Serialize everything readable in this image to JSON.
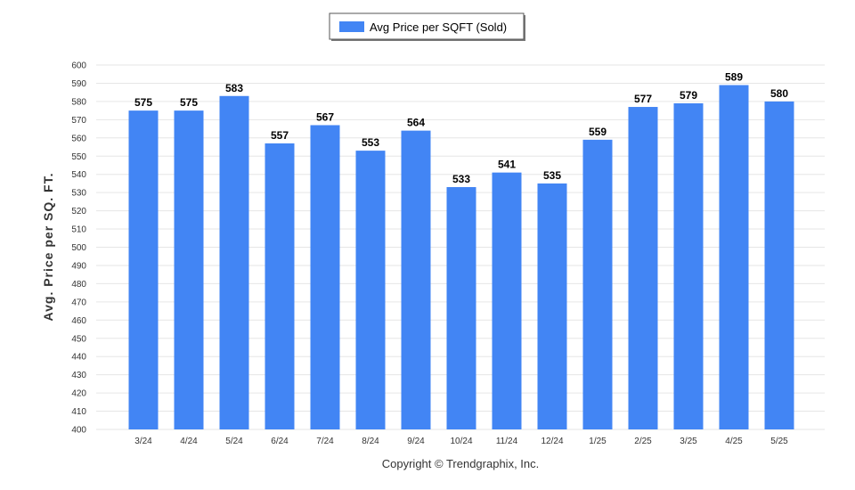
{
  "chart_data": {
    "type": "bar",
    "categories": [
      "3/24",
      "4/24",
      "5/24",
      "6/24",
      "7/24",
      "8/24",
      "9/24",
      "10/24",
      "11/24",
      "12/24",
      "1/25",
      "2/25",
      "3/25",
      "4/25",
      "5/25"
    ],
    "series": [
      {
        "name": "Avg Price per SQFT (Sold)",
        "values": [
          575,
          575,
          583,
          557,
          567,
          553,
          564,
          533,
          541,
          535,
          559,
          577,
          579,
          589,
          580
        ],
        "color": "#4285f4"
      }
    ],
    "ylabel": "Avg. Price per SQ. FT.",
    "xlabel": "",
    "ylim": [
      400,
      600
    ],
    "yticks": [
      400,
      410,
      420,
      430,
      440,
      450,
      460,
      470,
      480,
      490,
      500,
      510,
      520,
      530,
      540,
      550,
      560,
      570,
      580,
      590,
      600
    ],
    "grid": true,
    "legend_position": "top-center",
    "data_labels": true
  },
  "footer": {
    "copyright": "Copyright © Trendgraphix, Inc."
  }
}
